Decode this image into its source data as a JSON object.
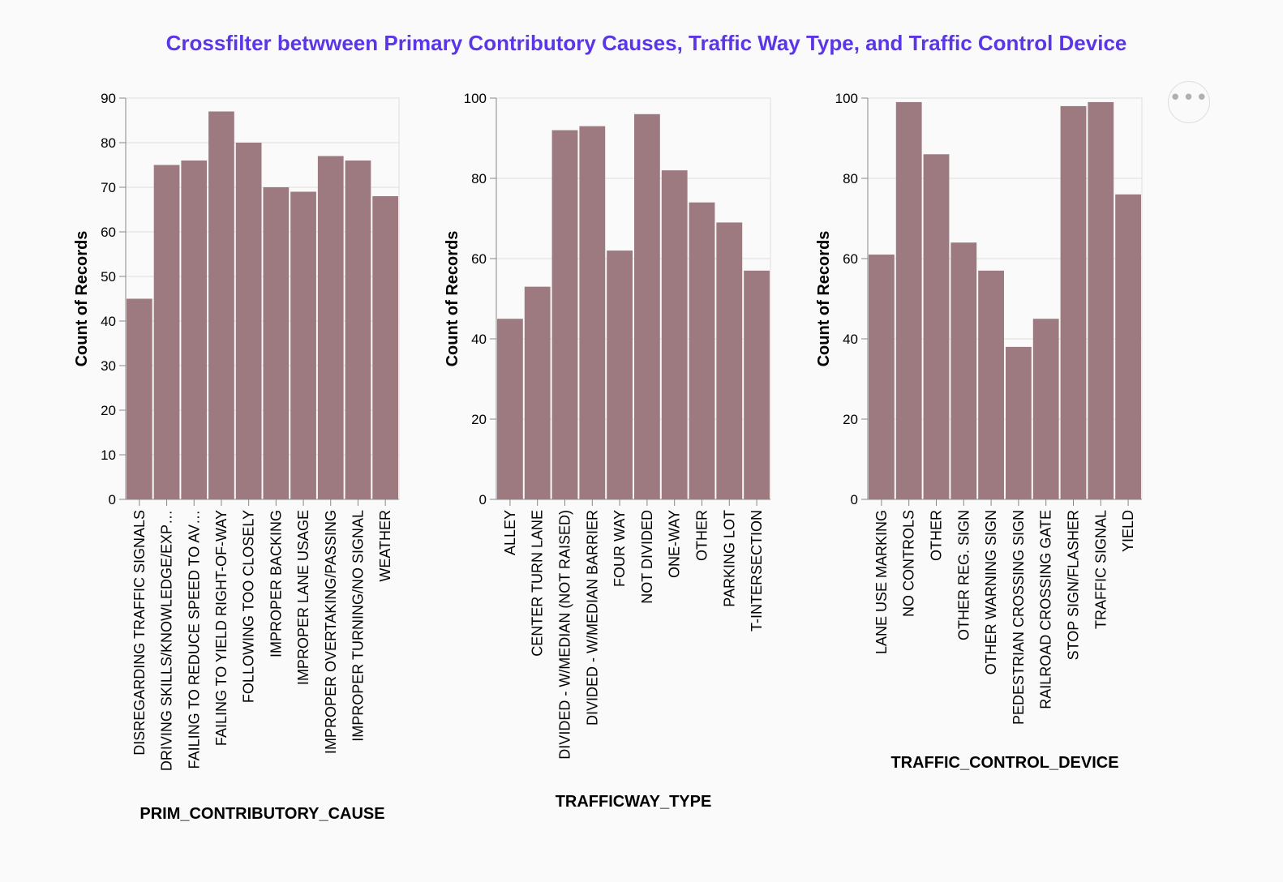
{
  "title": "Crossfilter betwween Primary Contributory Causes, Traffic Way Type, and Traffic Control Device",
  "colors": {
    "title": "#5b36e6",
    "bar": "#9c7a80",
    "grid": "#dddddd",
    "axis": "#888888"
  },
  "menu": {
    "icon": "ellipsis-icon",
    "label": "•••"
  },
  "chart_data": [
    {
      "type": "bar",
      "xlabel": "PRIM_CONTRIBUTORY_CAUSE",
      "ylabel": "Count of Records",
      "ylim": [
        0,
        90
      ],
      "yticks": [
        0,
        10,
        20,
        30,
        40,
        50,
        60,
        70,
        80,
        90
      ],
      "grid": true,
      "categories": [
        "DISREGARDING TRAFFIC SIGNALS",
        "DRIVING SKILLS/KNOWLEDGE/EXP…",
        "FAILING TO REDUCE SPEED TO AV…",
        "FAILING TO YIELD RIGHT-OF-WAY",
        "FOLLOWING TOO CLOSELY",
        "IMPROPER BACKING",
        "IMPROPER LANE USAGE",
        "IMPROPER OVERTAKING/PASSING",
        "IMPROPER TURNING/NO SIGNAL",
        "WEATHER"
      ],
      "values": [
        45,
        75,
        76,
        87,
        80,
        70,
        69,
        77,
        76,
        68
      ]
    },
    {
      "type": "bar",
      "xlabel": "TRAFFICWAY_TYPE",
      "ylabel": "Count of Records",
      "ylim": [
        0,
        100
      ],
      "yticks": [
        0,
        20,
        40,
        60,
        80,
        100
      ],
      "grid": true,
      "categories": [
        "ALLEY",
        "CENTER TURN LANE",
        "DIVIDED - W/MEDIAN (NOT RAISED)",
        "DIVIDED - W/MEDIAN BARRIER",
        "FOUR WAY",
        "NOT DIVIDED",
        "ONE-WAY",
        "OTHER",
        "PARKING LOT",
        "T-INTERSECTION"
      ],
      "values": [
        45,
        53,
        92,
        93,
        62,
        96,
        82,
        74,
        69,
        57
      ]
    },
    {
      "type": "bar",
      "xlabel": "TRAFFIC_CONTROL_DEVICE",
      "ylabel": "Count of Records",
      "ylim": [
        0,
        100
      ],
      "yticks": [
        0,
        20,
        40,
        60,
        80,
        100
      ],
      "grid": true,
      "categories": [
        "LANE USE MARKING",
        "NO CONTROLS",
        "OTHER",
        "OTHER REG. SIGN",
        "OTHER WARNING SIGN",
        "PEDESTRIAN CROSSING SIGN",
        "RAILROAD CROSSING GATE",
        "STOP SIGN/FLASHER",
        "TRAFFIC SIGNAL",
        "YIELD"
      ],
      "values": [
        61,
        99,
        86,
        64,
        57,
        38,
        45,
        98,
        99,
        76
      ]
    }
  ]
}
